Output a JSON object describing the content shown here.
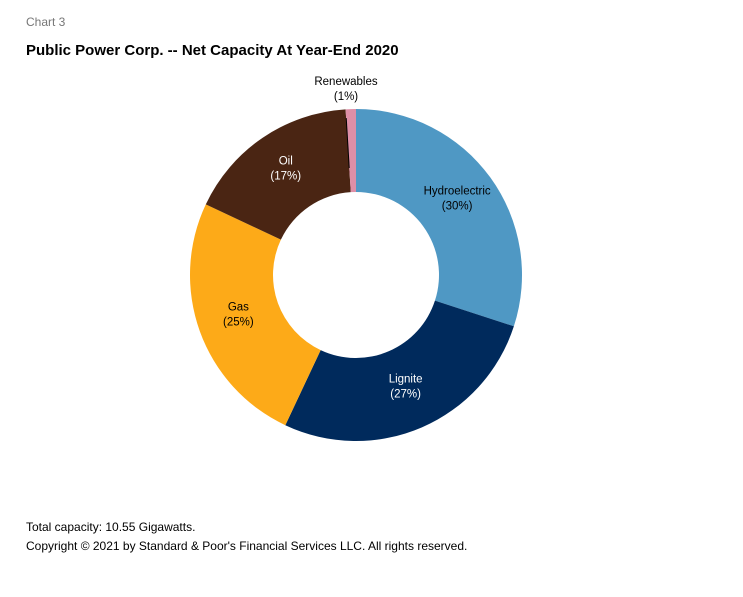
{
  "header": {
    "chart_number": "Chart 3",
    "title": "Public Power Corp. -- Net Capacity At Year-End 2020"
  },
  "chart_data": {
    "type": "pie",
    "variant": "donut",
    "title": "Public Power Corp. -- Net Capacity At Year-End 2020",
    "categories": [
      "Hydroelectric",
      "Lignite",
      "Gas",
      "Oil",
      "Renewables"
    ],
    "values": [
      30,
      27,
      25,
      17,
      1
    ],
    "labels_pct": [
      "(30%)",
      "(27%)",
      "(25%)",
      "(17%)",
      "(1%)"
    ],
    "colors": [
      "#4F98C4",
      "#002A5C",
      "#FDAA18",
      "#4A2513",
      "#DE8FA7"
    ],
    "start_angle_deg": 0,
    "direction": "clockwise"
  },
  "footer": {
    "total_capacity": "Total capacity: 10.55 Gigawatts.",
    "copyright": "Copyright © 2021 by Standard & Poor's Financial Services LLC. All rights reserved."
  }
}
